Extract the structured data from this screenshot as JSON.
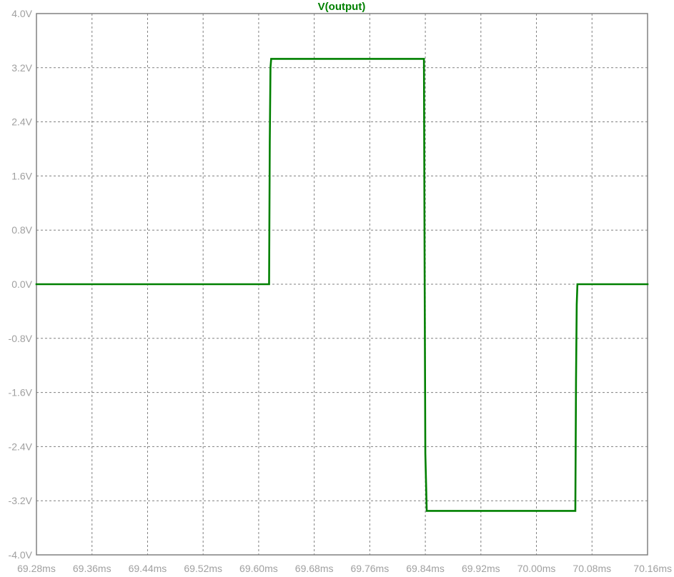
{
  "chart_data": {
    "type": "line",
    "title": "V(output)",
    "xlabel": "",
    "ylabel": "",
    "xlim": [
      69.28,
      70.16
    ],
    "ylim": [
      -4.0,
      4.0
    ],
    "x_ticks": [
      69.28,
      69.36,
      69.44,
      69.52,
      69.6,
      69.68,
      69.76,
      69.84,
      69.92,
      70.0,
      70.08,
      70.16
    ],
    "x_tick_labels": [
      "69.28ms",
      "69.36ms",
      "69.44ms",
      "69.52ms",
      "69.60ms",
      "69.68ms",
      "69.76ms",
      "69.84ms",
      "69.92ms",
      "70.00ms",
      "70.08ms",
      "70.16ms"
    ],
    "y_ticks": [
      4.0,
      3.2,
      2.4,
      1.6,
      0.8,
      0.0,
      -0.8,
      -1.6,
      -2.4,
      -3.2,
      -4.0
    ],
    "y_tick_labels": [
      "4.0V",
      "3.2V",
      "2.4V",
      "1.6V",
      "0.8V",
      "0.0V",
      "-0.8V",
      "-1.6V",
      "-2.4V",
      "-3.2V",
      "-4.0V"
    ],
    "grid": true,
    "legend": "none",
    "colors": {
      "trace": "#008000",
      "title": "#008000",
      "frame": "#808080",
      "grid": "#808080",
      "tick_labels": "#a0a0a0",
      "background": "#ffffff"
    },
    "series": [
      {
        "name": "V(output)",
        "x": [
          69.28,
          69.615,
          69.616,
          69.617,
          69.618,
          69.838,
          69.839,
          69.84,
          69.842,
          70.056,
          70.057,
          70.058,
          70.059,
          70.16
        ],
        "y": [
          0.0,
          0.0,
          2.1,
          3.2,
          3.33,
          3.33,
          0.15,
          -2.5,
          -3.35,
          -3.35,
          -1.4,
          -0.3,
          0.0,
          0.0
        ]
      }
    ]
  }
}
